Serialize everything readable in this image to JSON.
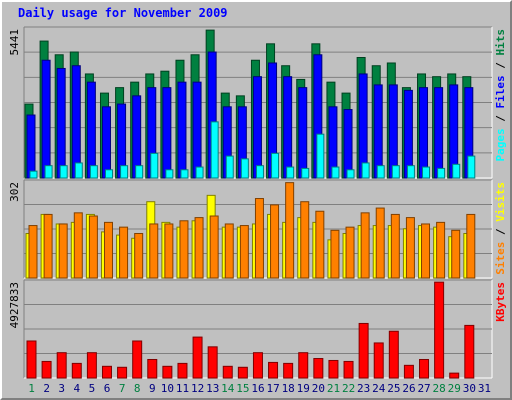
{
  "title": "Daily usage for November 2009",
  "colors": {
    "hits": "#008040",
    "files": "#0000ff",
    "pages": "#00ffff",
    "visits": "#ffff00",
    "sites": "#ff8000",
    "kbytes": "#ff0000",
    "plot_bg": "#c0c0c0",
    "grid": "#808080",
    "weekend": "#008040",
    "weekday": "#000080"
  },
  "chart_data": [
    {
      "type": "bar",
      "panel": "hits-files-pages",
      "ymax_label": "5441",
      "ylim": [
        0,
        5441
      ],
      "legend": [
        {
          "name": "Pages",
          "color": "#00ffff"
        },
        {
          "name": "Files",
          "color": "#0000ff"
        },
        {
          "name": "Hits",
          "color": "#008040"
        }
      ],
      "categories": [
        "1",
        "2",
        "3",
        "4",
        "5",
        "6",
        "7",
        "8",
        "9",
        "10",
        "11",
        "12",
        "13",
        "14",
        "15",
        "16",
        "17",
        "18",
        "19",
        "20",
        "21",
        "22",
        "23",
        "24",
        "25",
        "26",
        "27",
        "28",
        "29",
        "30",
        "31"
      ],
      "weekend": [
        true,
        false,
        false,
        false,
        false,
        false,
        true,
        true,
        false,
        false,
        false,
        false,
        false,
        true,
        true,
        false,
        false,
        false,
        false,
        false,
        true,
        true,
        false,
        false,
        false,
        false,
        false,
        true,
        true,
        false,
        false
      ],
      "series": [
        {
          "name": "Hits",
          "values": [
            2700,
            5000,
            4500,
            4600,
            3800,
            3100,
            3300,
            3500,
            3800,
            3900,
            4300,
            4500,
            5400,
            3100,
            3000,
            4300,
            4900,
            4100,
            3600,
            4900,
            3500,
            3100,
            4400,
            4100,
            4200,
            3300,
            3800,
            3700,
            3800,
            3700,
            0
          ]
        },
        {
          "name": "Files",
          "values": [
            2300,
            4300,
            4000,
            4100,
            3500,
            2600,
            2700,
            3000,
            3300,
            3300,
            3500,
            3500,
            4600,
            2600,
            2600,
            3700,
            4200,
            3700,
            3300,
            4500,
            2600,
            2500,
            3800,
            3400,
            3400,
            3200,
            3300,
            3300,
            3400,
            3300,
            0
          ]
        },
        {
          "name": "Pages",
          "values": [
            250,
            450,
            450,
            550,
            450,
            300,
            450,
            450,
            900,
            300,
            300,
            400,
            2050,
            800,
            700,
            450,
            900,
            400,
            350,
            1600,
            400,
            300,
            550,
            450,
            450,
            450,
            400,
            350,
            500,
            800,
            0
          ]
        }
      ]
    },
    {
      "type": "bar",
      "panel": "visits-sites",
      "ymax_label": "302",
      "ylim": [
        0,
        302
      ],
      "legend": [
        {
          "name": "Sites",
          "color": "#ff8000"
        },
        {
          "name": "Visits",
          "color": "#ffff00"
        }
      ],
      "categories": [
        "1",
        "2",
        "3",
        "4",
        "5",
        "6",
        "7",
        "8",
        "9",
        "10",
        "11",
        "12",
        "13",
        "14",
        "15",
        "16",
        "17",
        "18",
        "19",
        "20",
        "21",
        "22",
        "23",
        "24",
        "25",
        "26",
        "27",
        "28",
        "29",
        "30",
        "31"
      ],
      "series": [
        {
          "name": "Visits",
          "values": [
            140,
            200,
            170,
            175,
            200,
            145,
            135,
            125,
            240,
            175,
            160,
            180,
            260,
            160,
            160,
            170,
            200,
            175,
            190,
            175,
            120,
            140,
            165,
            165,
            165,
            155,
            165,
            160,
            130,
            140,
            0
          ]
        },
        {
          "name": "Sites",
          "values": [
            165,
            200,
            170,
            205,
            195,
            175,
            160,
            140,
            170,
            170,
            180,
            190,
            195,
            170,
            165,
            250,
            230,
            300,
            240,
            210,
            150,
            160,
            205,
            220,
            200,
            190,
            170,
            175,
            150,
            200,
            0
          ]
        }
      ]
    },
    {
      "type": "bar",
      "panel": "kbytes",
      "ymax_label": "4927833",
      "ylim": [
        0,
        4927833
      ],
      "legend": [
        {
          "name": "KBytes",
          "color": "#ff0000"
        }
      ],
      "categories": [
        "1",
        "2",
        "3",
        "4",
        "5",
        "6",
        "7",
        "8",
        "9",
        "10",
        "11",
        "12",
        "13",
        "14",
        "15",
        "16",
        "17",
        "18",
        "19",
        "20",
        "21",
        "22",
        "23",
        "24",
        "25",
        "26",
        "27",
        "28",
        "29",
        "30",
        "31"
      ],
      "series": [
        {
          "name": "KBytes",
          "values": [
            1900000,
            850000,
            1300000,
            750000,
            1300000,
            600000,
            550000,
            1900000,
            950000,
            600000,
            750000,
            2100000,
            1600000,
            600000,
            550000,
            1300000,
            800000,
            750000,
            1300000,
            1000000,
            900000,
            850000,
            2800000,
            1800000,
            2400000,
            650000,
            950000,
            4920000,
            250000,
            2700000,
            0
          ]
        }
      ]
    }
  ]
}
